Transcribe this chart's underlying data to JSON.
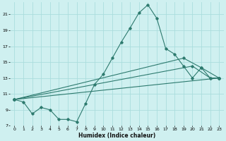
{
  "xlabel": "Humidex (Indice chaleur)",
  "bg_color": "#cff0f0",
  "grid_color": "#aadddd",
  "line_color": "#2d7a6e",
  "xlim": [
    -0.5,
    23.5
  ],
  "ylim": [
    7,
    22.5
  ],
  "xticks": [
    0,
    1,
    2,
    3,
    4,
    5,
    6,
    7,
    8,
    9,
    10,
    11,
    12,
    13,
    14,
    15,
    16,
    17,
    18,
    19,
    20,
    21,
    22,
    23
  ],
  "yticks": [
    7,
    9,
    11,
    13,
    15,
    17,
    19,
    21
  ],
  "series": [
    {
      "x": [
        0,
        1,
        2,
        3,
        4,
        5,
        6,
        7,
        8,
        9,
        10,
        11,
        12,
        13,
        14,
        15,
        16,
        17,
        18,
        19,
        20,
        21,
        22,
        23
      ],
      "y": [
        10.3,
        10.0,
        8.5,
        9.3,
        9.0,
        7.8,
        7.8,
        7.5,
        9.8,
        12.2,
        13.5,
        15.5,
        17.5,
        19.3,
        21.2,
        22.2,
        20.5,
        16.7,
        16.0,
        14.5,
        13.0,
        14.3,
        13.0,
        13.0
      ]
    },
    {
      "x": [
        0,
        19,
        21,
        23
      ],
      "y": [
        10.3,
        15.5,
        14.3,
        13.0
      ]
    },
    {
      "x": [
        0,
        20,
        22,
        23
      ],
      "y": [
        10.3,
        14.5,
        13.0,
        13.0
      ]
    },
    {
      "x": [
        0,
        23
      ],
      "y": [
        10.3,
        13.0
      ]
    }
  ]
}
